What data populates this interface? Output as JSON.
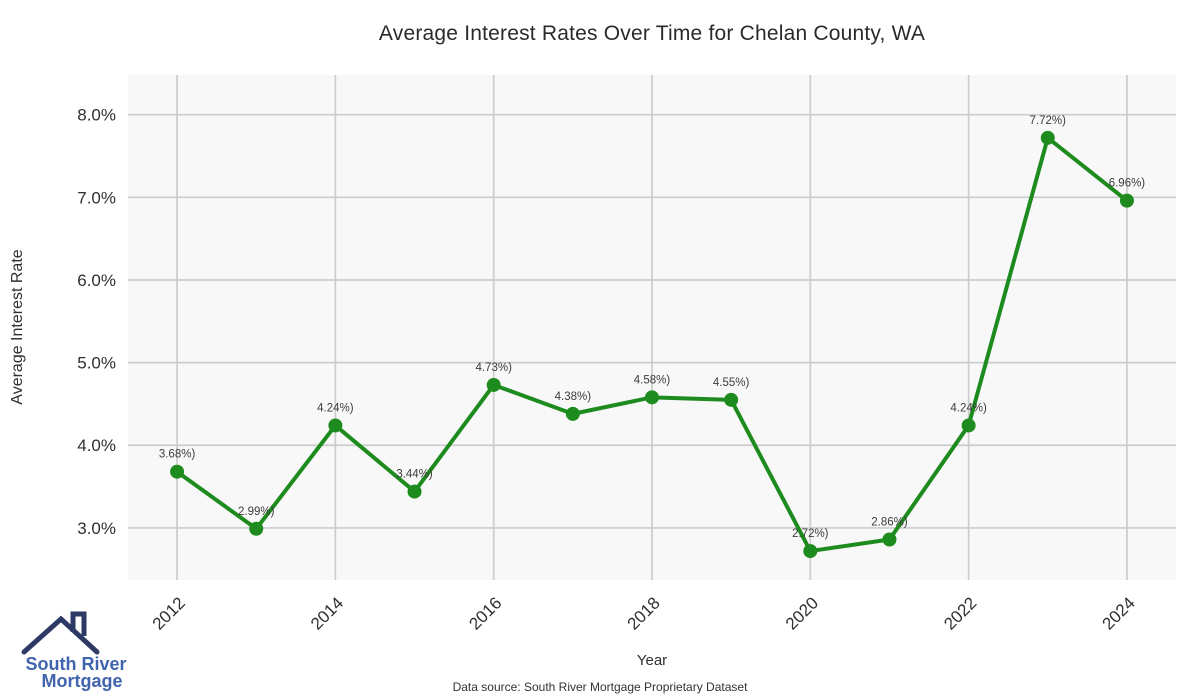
{
  "title": "Average Interest Rates Over Time for Chelan County, WA",
  "axes": {
    "y_label": "Average Interest Rate",
    "x_label": "Year"
  },
  "footer": {
    "source": "Data source: South River Mortgage Proprietary Dataset"
  },
  "logo": {
    "line1": "South River",
    "line2": "Mortgage",
    "text_color": "#4164ae",
    "roof_color": "#2d3a66"
  },
  "chart_data": {
    "type": "line",
    "title": "Average Interest Rates Over Time for Chelan County, WA",
    "xlabel": "Year",
    "ylabel": "Average Interest Rate",
    "x": [
      2012,
      2013,
      2014,
      2015,
      2016,
      2017,
      2018,
      2019,
      2020,
      2021,
      2022,
      2023,
      2024
    ],
    "values": [
      3.68,
      2.99,
      4.24,
      3.44,
      4.73,
      4.38,
      4.58,
      4.55,
      2.72,
      2.86,
      4.24,
      7.72,
      6.96
    ],
    "point_labels": [
      "3.68%)",
      "2.99%)",
      "4.24%)",
      "3.44%)",
      "4.73%)",
      "4.38%)",
      "4.58%)",
      "4.55%)",
      "2.72%)",
      "2.86%)",
      "4.24%)",
      "7.72%)",
      "6.96%)"
    ],
    "x_ticks": [
      2012,
      2014,
      2016,
      2018,
      2020,
      2022,
      2024
    ],
    "y_ticks": [
      3.0,
      4.0,
      5.0,
      6.0,
      7.0,
      8.0
    ],
    "y_tick_labels": [
      "3.0%",
      "4.0%",
      "5.0%",
      "6.0%",
      "7.0%",
      "8.0%"
    ],
    "xlim": [
      2011.38,
      2024.62
    ],
    "ylim": [
      2.37,
      8.48
    ],
    "grid": true,
    "legend": "none",
    "line_color": "#1e8b1e",
    "marker_color": "#1e8b1e",
    "plot_bg": "#f8f8f8",
    "grid_color": "#cccccc",
    "tick_color": "#2f2f2f",
    "label_color": "#3c3c3c"
  }
}
